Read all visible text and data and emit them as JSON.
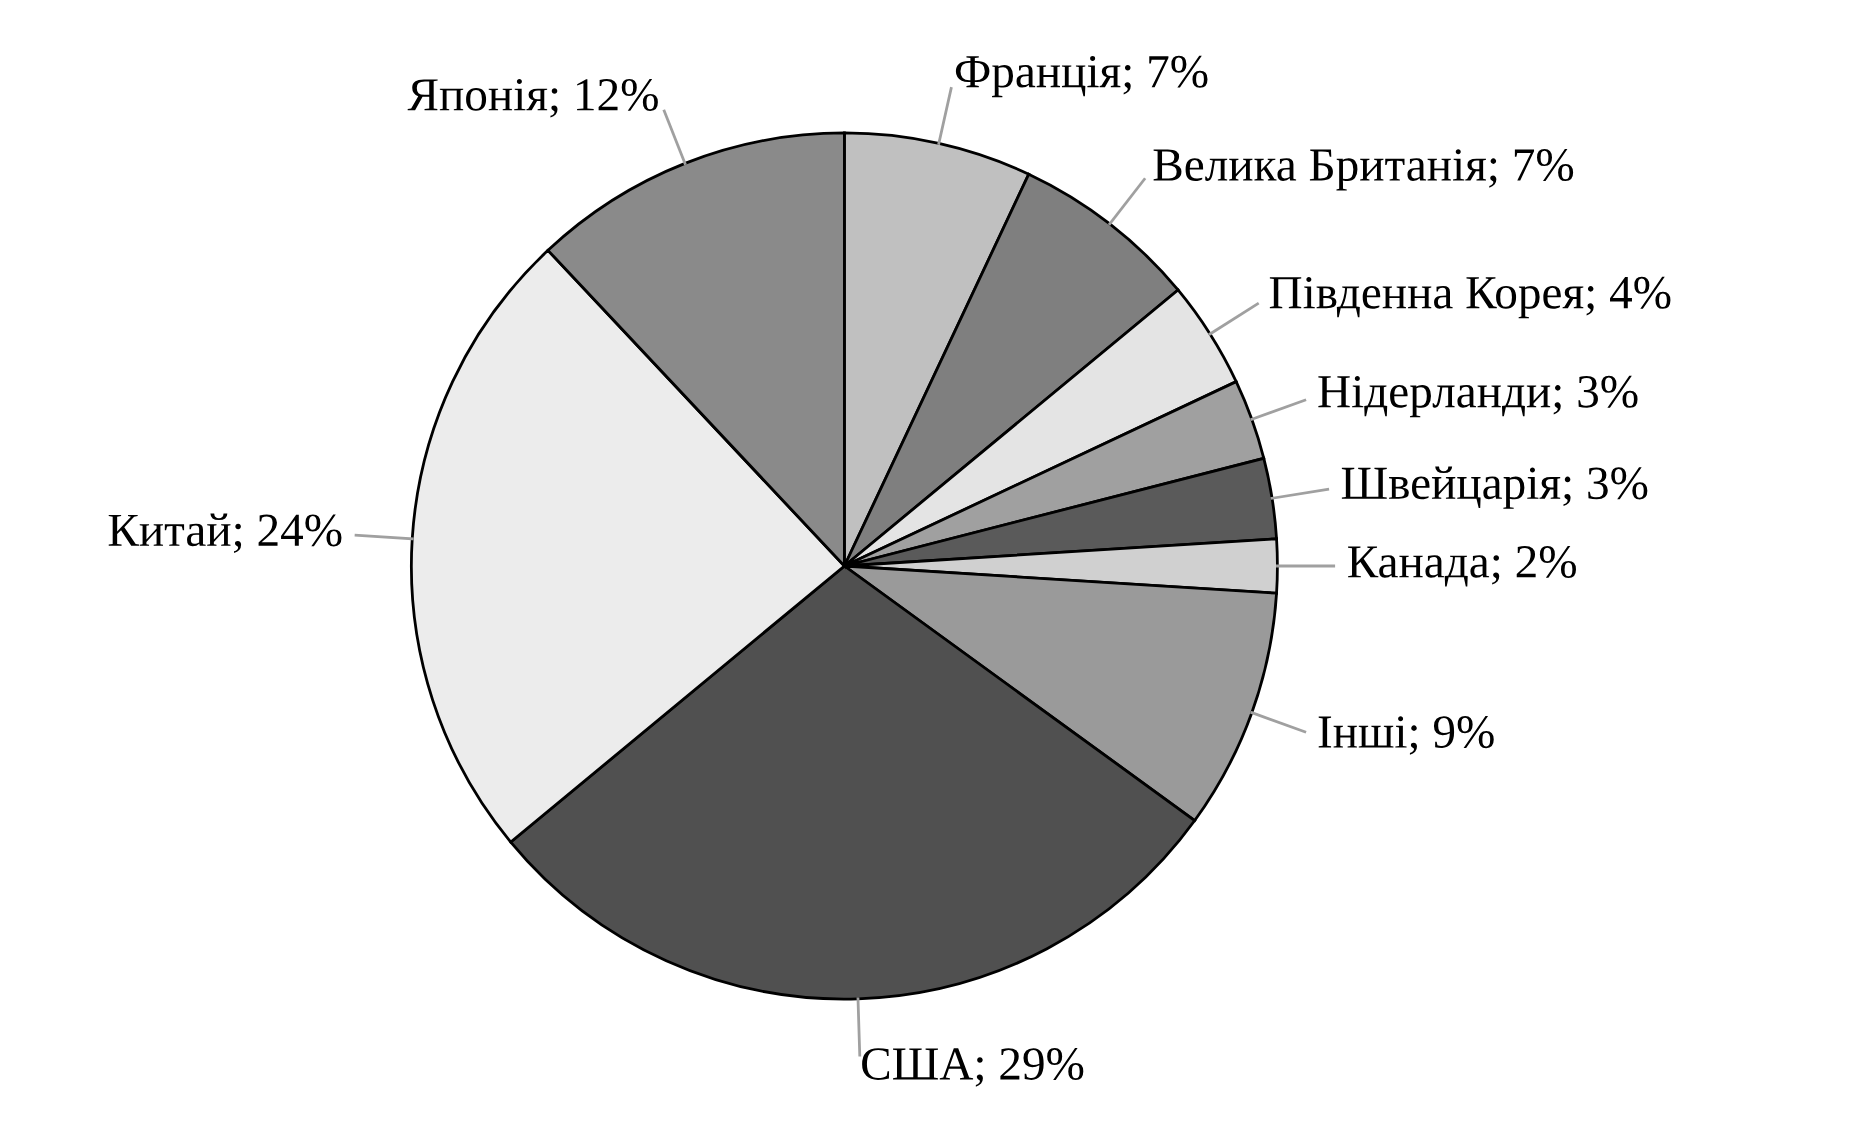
{
  "chart_data": {
    "type": "pie",
    "categories": [
      "Франція",
      "Велика Британія",
      "Південна Корея",
      "Нідерланди",
      "Швейцарія",
      "Канада",
      "Інші",
      "США",
      "Китай",
      "Японія"
    ],
    "values": [
      7,
      7,
      4,
      3,
      3,
      2,
      9,
      29,
      24,
      12
    ],
    "value_labels": [
      "7%",
      "7%",
      "4%",
      "3%",
      "3%",
      "2%",
      "9%",
      "29%",
      "24%",
      "12%"
    ],
    "colors": [
      "#c0c0c0",
      "#7f7f7f",
      "#e4e4e4",
      "#a0a0a0",
      "#5a5a5a",
      "#d0d0d0",
      "#9a9a9a",
      "#505050",
      "#ececec",
      "#8a8a8a"
    ]
  }
}
